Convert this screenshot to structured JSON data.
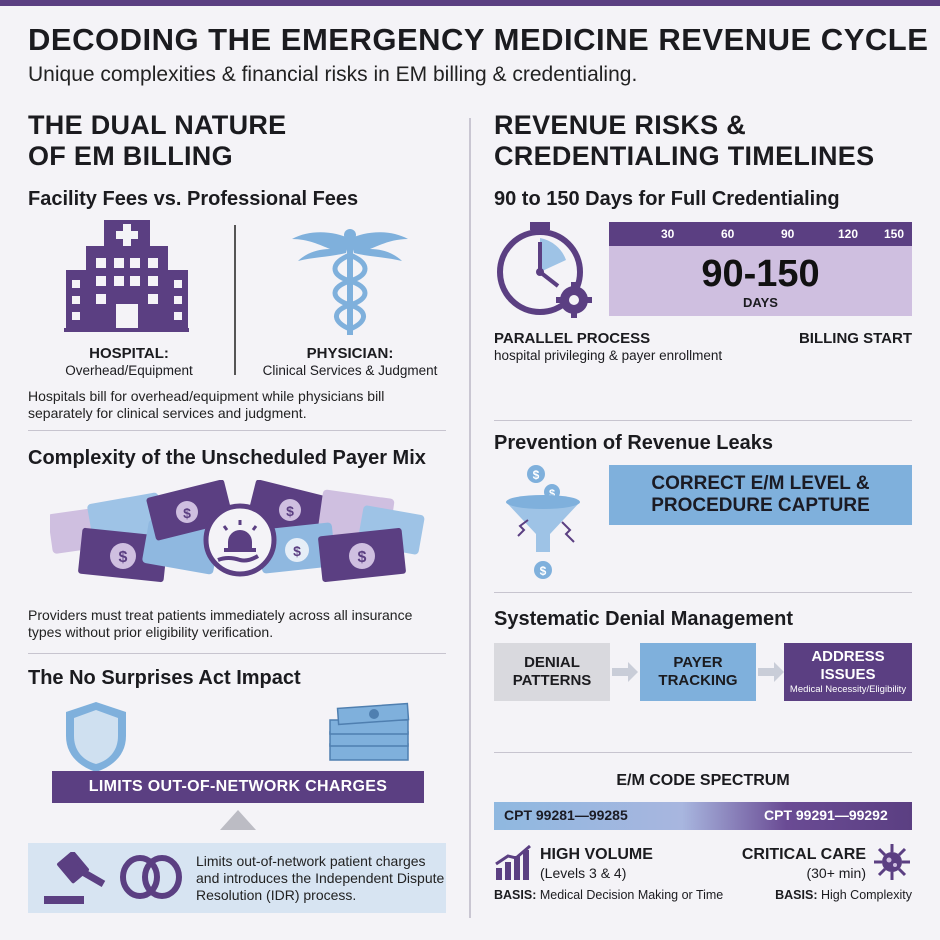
{
  "header": {
    "title": "DECODING THE EMERGENCY MEDICINE REVENUE CYCLE",
    "subtitle": "Unique complexities & financial risks in EM billing & credentialing."
  },
  "left": {
    "section_title": [
      "THE DUAL NATURE",
      "OF EM BILLING"
    ],
    "fees": {
      "heading": "Facility Fees vs. Professional Fees",
      "hospital_label": "HOSPITAL:",
      "hospital_sub": "Overhead/Equipment",
      "physician_label": "PHYSICIAN:",
      "physician_sub": "Clinical Services & Judgment",
      "description": "Hospitals bill for overhead/equipment while physicians bill separately for clinical services and judgment."
    },
    "payer_mix": {
      "heading": "Complexity of the Unscheduled Payer Mix",
      "description": "Providers must treat patients immediately across all insurance types without prior eligibility verification."
    },
    "nsa": {
      "heading": "The No Surprises Act Impact",
      "banner": "LIMITS OUT-OF-NETWORK CHARGES",
      "description": "Limits out-of-network patient charges and introduces the Independent Dispute Resolution (IDR) process."
    }
  },
  "right": {
    "section_title": [
      "REVENUE RISKS &",
      "CREDENTIALING TIMELINES"
    ],
    "credentialing": {
      "heading": "90 to 150 Days for Full Credentialing",
      "ticks": [
        "30",
        "60",
        "90",
        "120",
        "150"
      ],
      "big_number": "90-150",
      "unit": "DAYS",
      "parallel_label": "PARALLEL PROCESS",
      "parallel_sub": "hospital privileging & payer enrollment",
      "billing_start": "BILLING START"
    },
    "leaks": {
      "heading": "Prevention of Revenue Leaks",
      "box": [
        "CORRECT E/M LEVEL &",
        "PROCEDURE CAPTURE"
      ]
    },
    "denials": {
      "heading": "Systematic Denial Management",
      "steps": [
        {
          "lines": [
            "DENIAL",
            "PATTERNS"
          ],
          "note": ""
        },
        {
          "lines": [
            "PAYER",
            "TRACKING"
          ],
          "note": ""
        },
        {
          "lines": [
            "ADDRESS",
            "ISSUES"
          ],
          "note": "Medical Necessity/Eligibility"
        }
      ]
    },
    "em": {
      "heading": "E/M CODE SPECTRUM",
      "left_code": "CPT 99281—99285",
      "right_code": "CPT 99291—99292",
      "left_title": "HIGH VOLUME",
      "left_sub": "(Levels 3 & 4)",
      "left_basis_label": "BASIS:",
      "left_basis": "Medical Decision Making or Time",
      "right_title": "CRITICAL CARE",
      "right_sub": "(30+ min)",
      "right_basis_label": "BASIS:",
      "right_basis": "High Complexity"
    }
  },
  "colors": {
    "purple": "#5b3f82",
    "light_purple": "#cfbfe0",
    "blue": "#7fb0dc",
    "light_blue": "#d7e4f2",
    "gray": "#d9d9de"
  }
}
